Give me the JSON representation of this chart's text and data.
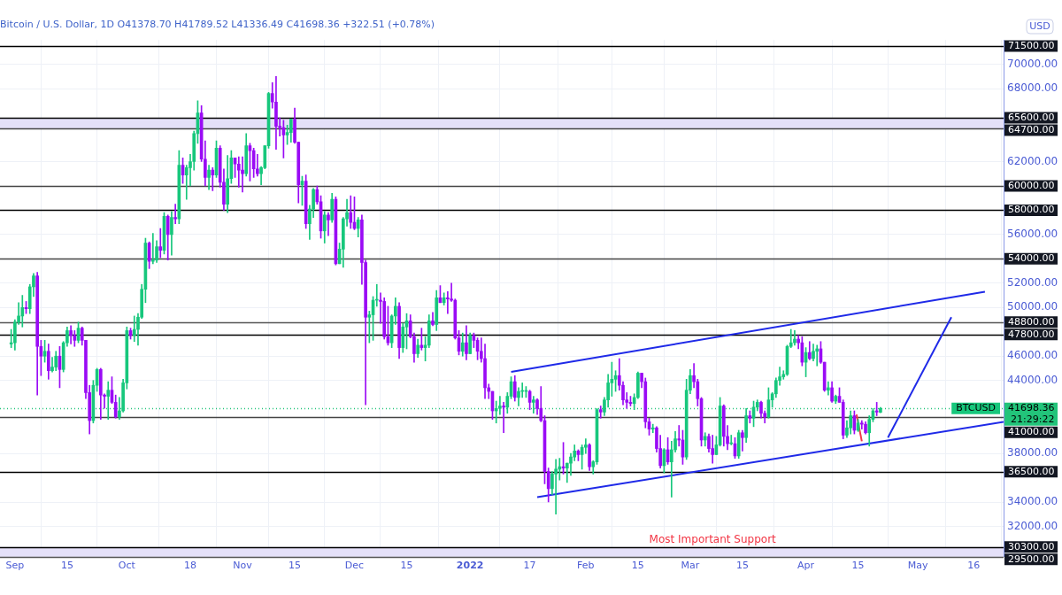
{
  "chart_data": {
    "type": "candlestick",
    "title": "Bitcoin / U.S. Dollar, 1D O41378.70 H41789.52 L41336.49 C41698.36 +322.51 (+0.78%)",
    "ylabel": "USD",
    "xlim": [
      "2021-08-28",
      "2022-05-24"
    ],
    "ylim": [
      29500,
      72000
    ],
    "xticks": [
      {
        "value": "2021-09-01",
        "label": "Sep"
      },
      {
        "value": "2021-09-15",
        "label": "15"
      },
      {
        "value": "2021-10-01",
        "label": "Oct"
      },
      {
        "value": "2021-10-18",
        "label": "18"
      },
      {
        "value": "2021-11-01",
        "label": "Nov"
      },
      {
        "value": "2021-11-15",
        "label": "15"
      },
      {
        "value": "2021-12-01",
        "label": "Dec"
      },
      {
        "value": "2021-12-15",
        "label": "15"
      },
      {
        "value": "2022-01-01",
        "label": "2022"
      },
      {
        "value": "2022-01-17",
        "label": "17"
      },
      {
        "value": "2022-02-01",
        "label": "Feb"
      },
      {
        "value": "2022-02-15",
        "label": "15"
      },
      {
        "value": "2022-03-01",
        "label": "Mar"
      },
      {
        "value": "2022-03-15",
        "label": "15"
      },
      {
        "value": "2022-04-01",
        "label": "Apr"
      },
      {
        "value": "2022-04-15",
        "label": "15"
      },
      {
        "value": "2022-05-01",
        "label": "May"
      },
      {
        "value": "2022-05-16",
        "label": "16"
      }
    ],
    "yticks": [
      {
        "value": 32000,
        "label": "32000.00"
      },
      {
        "value": 34000,
        "label": "34000.00"
      },
      {
        "value": 38000,
        "label": "38000.00"
      },
      {
        "value": 44000,
        "label": "44000.00"
      },
      {
        "value": 46000,
        "label": "46000.00"
      },
      {
        "value": 50000,
        "label": "50000.00"
      },
      {
        "value": 52000,
        "label": "52000.00"
      },
      {
        "value": 56000,
        "label": "56000.00"
      },
      {
        "value": 62000,
        "label": "62000.00"
      },
      {
        "value": 68000,
        "label": "68000.00"
      },
      {
        "value": 70000,
        "label": "70000.00"
      }
    ],
    "grid": true,
    "legend": false,
    "series": [
      {
        "type": "line",
        "color": "#1f2ae8",
        "x": [
          "2022-01-12",
          "2022-05-19"
        ],
        "values": [
          44700,
          51300
        ]
      },
      {
        "type": "line",
        "color": "#1f2ae8",
        "x": [
          "2022-01-19",
          "2022-05-24"
        ],
        "values": [
          34400,
          40600
        ]
      },
      {
        "type": "line",
        "color": "#1f2ae8",
        "x": [
          "2022-04-23",
          "2022-05-10"
        ],
        "values": [
          39300,
          49200
        ]
      },
      {
        "type": "line",
        "color": "#f2364a",
        "x": [
          "2022-04-14T14:00",
          "2022-04-16"
        ],
        "values": [
          41200,
          39000
        ]
      },
      {
        "type": "candlestick",
        "x": [
          "2021-08-31",
          "2021-09-01",
          "2021-09-02",
          "2021-09-03",
          "2021-09-04",
          "2021-09-05",
          "2021-09-06",
          "2021-09-07",
          "2021-09-08",
          "2021-09-09",
          "2021-09-10",
          "2021-09-11",
          "2021-09-12",
          "2021-09-13",
          "2021-09-14",
          "2021-09-15",
          "2021-09-16",
          "2021-09-17",
          "2021-09-18",
          "2021-09-19",
          "2021-09-20",
          "2021-09-21",
          "2021-09-22",
          "2021-09-23",
          "2021-09-24",
          "2021-09-25",
          "2021-09-26",
          "2021-09-27",
          "2021-09-28",
          "2021-09-29",
          "2021-09-30",
          "2021-10-01",
          "2021-10-02",
          "2021-10-03",
          "2021-10-04",
          "2021-10-05",
          "2021-10-06",
          "2021-10-07",
          "2021-10-08",
          "2021-10-09",
          "2021-10-10",
          "2021-10-11",
          "2021-10-12",
          "2021-10-13",
          "2021-10-14",
          "2021-10-15",
          "2021-10-16",
          "2021-10-17",
          "2021-10-18",
          "2021-10-19",
          "2021-10-20",
          "2021-10-21",
          "2021-10-22",
          "2021-10-23",
          "2021-10-24",
          "2021-10-25",
          "2021-10-26",
          "2021-10-27",
          "2021-10-28",
          "2021-10-29",
          "2021-10-30",
          "2021-10-31",
          "2021-11-01",
          "2021-11-02",
          "2021-11-03",
          "2021-11-04",
          "2021-11-05",
          "2021-11-06",
          "2021-11-07",
          "2021-11-08",
          "2021-11-09",
          "2021-11-10",
          "2021-11-11",
          "2021-11-12",
          "2021-11-13",
          "2021-11-14",
          "2021-11-15",
          "2021-11-16",
          "2021-11-17",
          "2021-11-18",
          "2021-11-19",
          "2021-11-20",
          "2021-11-21",
          "2021-11-22",
          "2021-11-23",
          "2021-11-24",
          "2021-11-25",
          "2021-11-26",
          "2021-11-27",
          "2021-11-28",
          "2021-11-29",
          "2021-11-30",
          "2021-12-01",
          "2021-12-02",
          "2021-12-03",
          "2021-12-04",
          "2021-12-05",
          "2021-12-06",
          "2021-12-07",
          "2021-12-08",
          "2021-12-09",
          "2021-12-10",
          "2021-12-11",
          "2021-12-12",
          "2021-12-13",
          "2021-12-14",
          "2021-12-15",
          "2021-12-16",
          "2021-12-17",
          "2021-12-18",
          "2021-12-19",
          "2021-12-20",
          "2021-12-21",
          "2021-12-22",
          "2021-12-23",
          "2021-12-24",
          "2021-12-25",
          "2021-12-26",
          "2021-12-27",
          "2021-12-28",
          "2021-12-29",
          "2021-12-30",
          "2021-12-31",
          "2022-01-01",
          "2022-01-02",
          "2022-01-03",
          "2022-01-04",
          "2022-01-05",
          "2022-01-06",
          "2022-01-07",
          "2022-01-08",
          "2022-01-09",
          "2022-01-10",
          "2022-01-11",
          "2022-01-12",
          "2022-01-13",
          "2022-01-14",
          "2022-01-15",
          "2022-01-16",
          "2022-01-17",
          "2022-01-18",
          "2022-01-19",
          "2022-01-20",
          "2022-01-21",
          "2022-01-22",
          "2022-01-23",
          "2022-01-24",
          "2022-01-25",
          "2022-01-26",
          "2022-01-27",
          "2022-01-28",
          "2022-01-29",
          "2022-01-30",
          "2022-01-31",
          "2022-02-01",
          "2022-02-02",
          "2022-02-03",
          "2022-02-04",
          "2022-02-05",
          "2022-02-06",
          "2022-02-07",
          "2022-02-08",
          "2022-02-09",
          "2022-02-10",
          "2022-02-11",
          "2022-02-12",
          "2022-02-13",
          "2022-02-14",
          "2022-02-15",
          "2022-02-16",
          "2022-02-17",
          "2022-02-18",
          "2022-02-19",
          "2022-02-20",
          "2022-02-21",
          "2022-02-22",
          "2022-02-23",
          "2022-02-24",
          "2022-02-25",
          "2022-02-26",
          "2022-02-27",
          "2022-02-28",
          "2022-03-01",
          "2022-03-02",
          "2022-03-03",
          "2022-03-04",
          "2022-03-05",
          "2022-03-06",
          "2022-03-07",
          "2022-03-08",
          "2022-03-09",
          "2022-03-10",
          "2022-03-11",
          "2022-03-12",
          "2022-03-13",
          "2022-03-14",
          "2022-03-15",
          "2022-03-16",
          "2022-03-17",
          "2022-03-18",
          "2022-03-19",
          "2022-03-20",
          "2022-03-21",
          "2022-03-22",
          "2022-03-23",
          "2022-03-24",
          "2022-03-25",
          "2022-03-26",
          "2022-03-27",
          "2022-03-28",
          "2022-03-29",
          "2022-03-30",
          "2022-03-31",
          "2022-04-01",
          "2022-04-02",
          "2022-04-03",
          "2022-04-04",
          "2022-04-05",
          "2022-04-06",
          "2022-04-07",
          "2022-04-08",
          "2022-04-09",
          "2022-04-10",
          "2022-04-11",
          "2022-04-12",
          "2022-04-13",
          "2022-04-14",
          "2022-04-15",
          "2022-04-16",
          "2022-04-17",
          "2022-04-18",
          "2022-04-19",
          "2022-04-20",
          "2022-04-21"
        ],
        "ohlc": [
          [
            47000,
            48200,
            46700,
            47100
          ],
          [
            47100,
            49000,
            46500,
            48800
          ],
          [
            48800,
            50400,
            48600,
            49300
          ],
          [
            49300,
            51000,
            48400,
            50000
          ],
          [
            50000,
            50500,
            49500,
            49900
          ],
          [
            49900,
            51900,
            49500,
            51700
          ],
          [
            51700,
            52800,
            50900,
            52600
          ],
          [
            52600,
            52900,
            42800,
            46800
          ],
          [
            46800,
            47300,
            44400,
            46000
          ],
          [
            46000,
            47300,
            45500,
            46400
          ],
          [
            46400,
            47000,
            44100,
            44800
          ],
          [
            44800,
            45900,
            44700,
            45100
          ],
          [
            45100,
            46400,
            44800,
            46000
          ],
          [
            46000,
            46800,
            43400,
            44900
          ],
          [
            44900,
            47200,
            44700,
            47100
          ],
          [
            47100,
            48400,
            46800,
            48100
          ],
          [
            48100,
            48500,
            47000,
            47700
          ],
          [
            47700,
            48100,
            46800,
            47300
          ],
          [
            47300,
            48800,
            47100,
            48300
          ],
          [
            48300,
            48400,
            46900,
            47300
          ],
          [
            47300,
            47300,
            42500,
            43000
          ],
          [
            43000,
            43600,
            39600,
            40700
          ],
          [
            40700,
            44000,
            40500,
            43600
          ],
          [
            43600,
            45000,
            43100,
            44900
          ],
          [
            44900,
            45000,
            40800,
            42800
          ],
          [
            42800,
            42900,
            41700,
            42700
          ],
          [
            42700,
            43900,
            40800,
            43200
          ],
          [
            43200,
            44300,
            42100,
            42200
          ],
          [
            42200,
            42800,
            40900,
            41000
          ],
          [
            41000,
            42600,
            40800,
            41500
          ],
          [
            41500,
            44100,
            41400,
            43800
          ],
          [
            43800,
            48400,
            43300,
            48100
          ],
          [
            48100,
            48300,
            47400,
            47700
          ],
          [
            47700,
            49300,
            47200,
            48200
          ],
          [
            48200,
            49500,
            46900,
            49200
          ],
          [
            49200,
            51900,
            49100,
            51500
          ],
          [
            51500,
            55700,
            50400,
            55300
          ],
          [
            55300,
            55400,
            53200,
            53800
          ],
          [
            53800,
            56100,
            53600,
            53900
          ],
          [
            53900,
            55500,
            53700,
            55000
          ],
          [
            55000,
            56500,
            54100,
            54700
          ],
          [
            54700,
            57800,
            54400,
            57500
          ],
          [
            57500,
            57600,
            53900,
            56000
          ],
          [
            56000,
            57900,
            54300,
            57400
          ],
          [
            57400,
            58500,
            56900,
            57300
          ],
          [
            57300,
            62900,
            56900,
            61700
          ],
          [
            61700,
            62300,
            60200,
            60900
          ],
          [
            60900,
            61700,
            58900,
            61500
          ],
          [
            61500,
            62600,
            60000,
            62000
          ],
          [
            62000,
            64500,
            61300,
            64300
          ],
          [
            64300,
            67000,
            63500,
            66000
          ],
          [
            66000,
            66600,
            62000,
            62200
          ],
          [
            62200,
            63700,
            60000,
            60700
          ],
          [
            60700,
            61700,
            59700,
            61300
          ],
          [
            61300,
            61500,
            59600,
            60900
          ],
          [
            60900,
            63700,
            60700,
            63100
          ],
          [
            63100,
            63300,
            59900,
            60300
          ],
          [
            60300,
            61400,
            58000,
            58500
          ],
          [
            58500,
            62500,
            57800,
            60600
          ],
          [
            60600,
            62900,
            60200,
            62300
          ],
          [
            62300,
            62300,
            60700,
            61800
          ],
          [
            61800,
            62400,
            59900,
            61300
          ],
          [
            61300,
            62400,
            59500,
            61000
          ],
          [
            61000,
            64300,
            60800,
            63300
          ],
          [
            63300,
            63500,
            60400,
            62900
          ],
          [
            62900,
            63100,
            60700,
            61400
          ],
          [
            61400,
            62600,
            60800,
            61000
          ],
          [
            61000,
            61600,
            60100,
            61500
          ],
          [
            61500,
            63300,
            61400,
            63300
          ],
          [
            63300,
            67700,
            63100,
            67600
          ],
          [
            67600,
            68500,
            66400,
            66900
          ],
          [
            66900,
            69000,
            63000,
            64900
          ],
          [
            64900,
            65600,
            64100,
            64800
          ],
          [
            64800,
            65400,
            62300,
            64200
          ],
          [
            64200,
            65000,
            63400,
            64400
          ],
          [
            64400,
            65500,
            63600,
            65500
          ],
          [
            65500,
            66400,
            63500,
            63600
          ],
          [
            63600,
            63600,
            58600,
            60100
          ],
          [
            60100,
            60800,
            58400,
            60400
          ],
          [
            60400,
            60900,
            56500,
            56900
          ],
          [
            56900,
            58400,
            55600,
            58100
          ],
          [
            58100,
            59800,
            57400,
            59700
          ],
          [
            59700,
            60000,
            58500,
            58700
          ],
          [
            58700,
            59200,
            55700,
            56300
          ],
          [
            56300,
            57900,
            55300,
            57600
          ],
          [
            57600,
            57800,
            55900,
            57200
          ],
          [
            57200,
            59400,
            57000,
            58900
          ],
          [
            58900,
            59100,
            53500,
            53600
          ],
          [
            53600,
            55300,
            53600,
            54800
          ],
          [
            54800,
            57400,
            53300,
            57300
          ],
          [
            57300,
            58900,
            56700,
            57800
          ],
          [
            57800,
            59200,
            56500,
            57000
          ],
          [
            57000,
            59100,
            56400,
            56500
          ],
          [
            56500,
            57400,
            55800,
            57200
          ],
          [
            57200,
            57600,
            51900,
            53700
          ],
          [
            53700,
            53900,
            42000,
            49200
          ],
          [
            49200,
            49700,
            47100,
            49400
          ],
          [
            49400,
            50900,
            47300,
            50600
          ],
          [
            50600,
            51900,
            50100,
            50600
          ],
          [
            50600,
            51200,
            48700,
            50500
          ],
          [
            50500,
            50800,
            47400,
            47600
          ],
          [
            47600,
            50100,
            46900,
            47100
          ],
          [
            47100,
            49400,
            46700,
            49300
          ],
          [
            49300,
            50800,
            48600,
            50100
          ],
          [
            50100,
            50400,
            45800,
            46700
          ],
          [
            46700,
            48700,
            46300,
            48400
          ],
          [
            48400,
            49500,
            46600,
            48900
          ],
          [
            48900,
            49400,
            47500,
            47600
          ],
          [
            47600,
            47900,
            45500,
            46200
          ],
          [
            46200,
            47400,
            45900,
            46900
          ],
          [
            46900,
            48300,
            46500,
            46700
          ],
          [
            46700,
            47600,
            45600,
            46900
          ],
          [
            46900,
            49400,
            46700,
            48900
          ],
          [
            48900,
            49600,
            48500,
            48600
          ],
          [
            48600,
            51400,
            48100,
            50800
          ],
          [
            50800,
            51800,
            50400,
            50400
          ],
          [
            50400,
            51200,
            50200,
            50800
          ],
          [
            50800,
            51300,
            49500,
            50700
          ],
          [
            50700,
            52000,
            50500,
            50600
          ],
          [
            50600,
            50700,
            47400,
            47500
          ],
          [
            47500,
            48100,
            46100,
            46400
          ],
          [
            46400,
            47900,
            46000,
            47100
          ],
          [
            47100,
            48500,
            45700,
            46200
          ],
          [
            46200,
            47900,
            46200,
            47700
          ],
          [
            47700,
            47900,
            46700,
            47300
          ],
          [
            47300,
            47500,
            45700,
            46400
          ],
          [
            46400,
            47500,
            45500,
            45800
          ],
          [
            45800,
            47000,
            42500,
            43400
          ],
          [
            43400,
            43700,
            42500,
            43100
          ],
          [
            43100,
            43100,
            40800,
            41500
          ],
          [
            41500,
            42300,
            40500,
            41700
          ],
          [
            41700,
            42700,
            41200,
            41900
          ],
          [
            41900,
            42200,
            39700,
            41800
          ],
          [
            41800,
            43000,
            41300,
            42700
          ],
          [
            42700,
            44300,
            42500,
            43900
          ],
          [
            43900,
            44400,
            42300,
            42600
          ],
          [
            42600,
            43400,
            41900,
            43100
          ],
          [
            43100,
            43800,
            42600,
            43100
          ],
          [
            43100,
            43500,
            42600,
            43100
          ],
          [
            43100,
            43200,
            41600,
            42200
          ],
          [
            42200,
            42700,
            41300,
            42400
          ],
          [
            42400,
            42500,
            41200,
            41700
          ],
          [
            41700,
            43500,
            40600,
            40700
          ],
          [
            40700,
            41100,
            35500,
            36500
          ],
          [
            36500,
            36800,
            34000,
            35100
          ],
          [
            35100,
            36500,
            34600,
            36300
          ],
          [
            36300,
            37500,
            33000,
            36700
          ],
          [
            36700,
            37600,
            35800,
            36900
          ],
          [
            36900,
            38900,
            36300,
            36800
          ],
          [
            36800,
            37200,
            35600,
            37200
          ],
          [
            37200,
            38000,
            36200,
            37700
          ],
          [
            37700,
            38700,
            37400,
            38200
          ],
          [
            38200,
            38300,
            37400,
            37900
          ],
          [
            37900,
            38700,
            36700,
            38500
          ],
          [
            38500,
            39200,
            38000,
            38700
          ],
          [
            38700,
            38800,
            36600,
            36900
          ],
          [
            36900,
            37400,
            36300,
            37300
          ],
          [
            37300,
            41700,
            37100,
            41600
          ],
          [
            41600,
            41900,
            40900,
            41400
          ],
          [
            41400,
            42600,
            41100,
            42400
          ],
          [
            42400,
            44500,
            41800,
            43800
          ],
          [
            43800,
            45500,
            42700,
            44100
          ],
          [
            44100,
            44800,
            43100,
            44400
          ],
          [
            44400,
            45800,
            43200,
            43600
          ],
          [
            43600,
            43900,
            42000,
            42400
          ],
          [
            42400,
            43000,
            41700,
            42200
          ],
          [
            42200,
            42700,
            41900,
            42100
          ],
          [
            42100,
            42900,
            41600,
            42600
          ],
          [
            42600,
            44700,
            42500,
            44600
          ],
          [
            44600,
            44600,
            43400,
            43900
          ],
          [
            43900,
            44200,
            40100,
            40600
          ],
          [
            40600,
            40900,
            39500,
            40000
          ],
          [
            40000,
            40400,
            39700,
            40100
          ],
          [
            40100,
            40200,
            38100,
            38400
          ],
          [
            38400,
            39500,
            36800,
            37000
          ],
          [
            37000,
            38400,
            36400,
            38300
          ],
          [
            38300,
            39300,
            37100,
            37300
          ],
          [
            37300,
            39000,
            34400,
            38300
          ],
          [
            38300,
            39800,
            38100,
            39200
          ],
          [
            39200,
            40300,
            38600,
            39100
          ],
          [
            39100,
            39900,
            37100,
            37700
          ],
          [
            37700,
            44100,
            37500,
            43200
          ],
          [
            43200,
            44900,
            42900,
            44400
          ],
          [
            44400,
            45400,
            43400,
            43900
          ],
          [
            43900,
            44100,
            41900,
            42500
          ],
          [
            42500,
            42600,
            38600,
            39100
          ],
          [
            39100,
            39700,
            38600,
            39400
          ],
          [
            39400,
            39600,
            38100,
            38400
          ],
          [
            38400,
            39500,
            37200,
            37900
          ],
          [
            37900,
            39400,
            37900,
            38700
          ],
          [
            38700,
            42600,
            38600,
            41900
          ],
          [
            41900,
            42000,
            38600,
            39400
          ],
          [
            39400,
            40300,
            38300,
            38800
          ],
          [
            38800,
            39500,
            38700,
            38800
          ],
          [
            38800,
            39300,
            37600,
            37800
          ],
          [
            37800,
            39900,
            37600,
            39700
          ],
          [
            39700,
            39900,
            38200,
            39300
          ],
          [
            39300,
            41700,
            38900,
            41100
          ],
          [
            41100,
            41500,
            40500,
            40900
          ],
          [
            40900,
            42300,
            40200,
            41800
          ],
          [
            41800,
            42400,
            41500,
            42200
          ],
          [
            42200,
            42300,
            40900,
            41300
          ],
          [
            41300,
            41500,
            40500,
            41000
          ],
          [
            41000,
            43400,
            40900,
            42400
          ],
          [
            42400,
            43000,
            41800,
            42900
          ],
          [
            42900,
            44200,
            42600,
            44000
          ],
          [
            44000,
            45100,
            43600,
            44300
          ],
          [
            44300,
            44800,
            44100,
            44500
          ],
          [
            44500,
            46900,
            44400,
            46800
          ],
          [
            46800,
            48200,
            46700,
            47100
          ],
          [
            47100,
            48100,
            46900,
            47400
          ],
          [
            47400,
            47700,
            46600,
            47100
          ],
          [
            47100,
            47600,
            45200,
            45500
          ],
          [
            45500,
            46700,
            44300,
            46300
          ],
          [
            46300,
            47200,
            45700,
            45800
          ],
          [
            45800,
            47000,
            45600,
            46400
          ],
          [
            46400,
            46900,
            45200,
            46600
          ],
          [
            46600,
            47200,
            45400,
            45500
          ],
          [
            45500,
            45500,
            43100,
            43200
          ],
          [
            43200,
            43900,
            42800,
            43400
          ],
          [
            43400,
            43900,
            42200,
            42300
          ],
          [
            42300,
            42800,
            42100,
            42700
          ],
          [
            42700,
            43400,
            42200,
            42200
          ],
          [
            42200,
            42400,
            39200,
            39500
          ],
          [
            39500,
            40700,
            39300,
            40100
          ],
          [
            40100,
            41500,
            39600,
            41100
          ],
          [
            41100,
            41500,
            39600,
            39900
          ],
          [
            39900,
            40800,
            39800,
            40500
          ],
          [
            40500,
            40700,
            40000,
            40400
          ],
          [
            40400,
            40600,
            39600,
            39700
          ],
          [
            39700,
            41100,
            38600,
            40800
          ],
          [
            40800,
            41700,
            40600,
            41500
          ],
          [
            41500,
            42200,
            41100,
            41400
          ],
          [
            41378.7,
            41789.52,
            41336.49,
            41698.36
          ]
        ]
      }
    ],
    "ref_lines": [
      {
        "axis": "y",
        "value": 71500,
        "label": "71500.00",
        "color": "#000000"
      },
      {
        "axis": "y",
        "value": 65600,
        "label": "65600.00",
        "color": "#000000"
      },
      {
        "axis": "y",
        "value": 64700,
        "label": "64700.00",
        "color": "#444444"
      },
      {
        "axis": "y",
        "value": 60000,
        "label": "60000.00",
        "color": "#444444"
      },
      {
        "axis": "y",
        "value": 58000,
        "label": "58000.00",
        "color": "#000000"
      },
      {
        "axis": "y",
        "value": 54000,
        "label": "54000.00",
        "color": "#444444"
      },
      {
        "axis": "y",
        "value": 48800,
        "label": "48800.00",
        "color": "#555555"
      },
      {
        "axis": "y",
        "value": 47800,
        "label": "47800.00",
        "color": "#000000"
      },
      {
        "axis": "y",
        "value": 41698.36,
        "label": "41698.36",
        "color": "#22c47a",
        "line_style": "dotted"
      },
      {
        "axis": "y",
        "value": 41000,
        "label": "41000.00",
        "color": "#444444"
      },
      {
        "axis": "y",
        "value": 36500,
        "label": "36500.00",
        "color": "#000000"
      },
      {
        "axis": "y",
        "value": 30300,
        "label": "30300.00",
        "color": "#000000"
      },
      {
        "axis": "y",
        "value": 29500,
        "label": "29500.00",
        "color": "#555555"
      }
    ],
    "bands": [
      {
        "axis": "y",
        "from": 64700,
        "to": 65600,
        "color": "#e4e0f8"
      },
      {
        "axis": "y",
        "from": 29500,
        "to": 30300,
        "color": "#e4e0f8"
      }
    ],
    "annotations": [
      {
        "text": "Most Important Support",
        "x": "2022-03-07",
        "y": 30300
      },
      "BTCUSD",
      "21:29:22"
    ]
  }
}
